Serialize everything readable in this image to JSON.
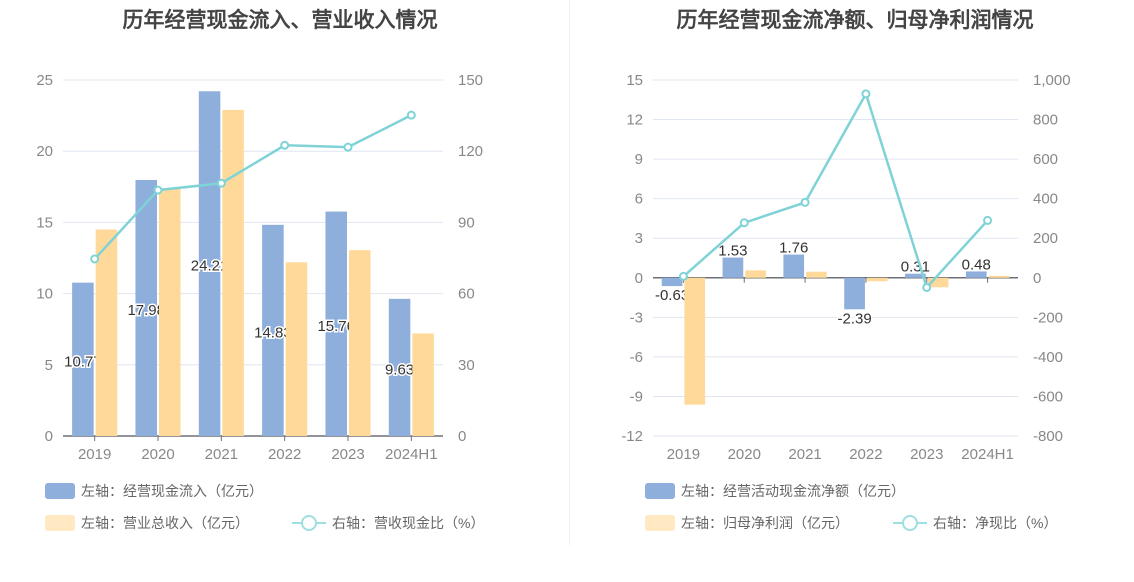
{
  "chart_data": [
    {
      "type": "bar+line",
      "title": "历年经营现金流入、营业收入情况",
      "categories": [
        "2019",
        "2020",
        "2021",
        "2022",
        "2023",
        "2024H1"
      ],
      "y_left": {
        "range": [
          0,
          25
        ],
        "ticks": [
          "0",
          "5",
          "10",
          "15",
          "20",
          "25"
        ]
      },
      "y_right": {
        "range": [
          0,
          150
        ],
        "ticks": [
          "0",
          "30",
          "60",
          "90",
          "120",
          "150"
        ]
      },
      "series": [
        {
          "name": "左轴：经营现金流入（亿元）",
          "type": "bar",
          "axis": "left",
          "color": "#8eaedb",
          "values": [
            10.77,
            17.98,
            24.21,
            14.83,
            15.76,
            9.63
          ],
          "labels": [
            "10.77",
            "17.98",
            "24.21",
            "14.83",
            "15.76",
            "9.63"
          ]
        },
        {
          "name": "左轴：营业总收入（亿元）",
          "type": "bar",
          "axis": "left",
          "color": "#ffd99a",
          "values": [
            14.5,
            17.4,
            22.9,
            12.2,
            13.05,
            7.2
          ]
        },
        {
          "name": "右轴：营收现金比（%）",
          "type": "line",
          "axis": "right",
          "color": "#7fd3d6",
          "values": [
            74.6,
            103.6,
            106.5,
            122.5,
            121.7,
            135.2
          ]
        }
      ],
      "grid": true,
      "legend": "bottom"
    },
    {
      "type": "bar+line",
      "title": "历年经营现金流净额、归母净利润情况",
      "categories": [
        "2019",
        "2020",
        "2021",
        "2022",
        "2023",
        "2024H1"
      ],
      "y_left": {
        "range": [
          -12,
          15
        ],
        "ticks": [
          "-12",
          "-9",
          "-6",
          "-3",
          "0",
          "3",
          "6",
          "9",
          "12",
          "15"
        ]
      },
      "y_right": {
        "range": [
          -800,
          1000
        ],
        "ticks": [
          "-800",
          "-600",
          "-400",
          "-200",
          "0",
          "200",
          "400",
          "600",
          "800",
          "1,000"
        ]
      },
      "series": [
        {
          "name": "左轴：经营活动现金流净额（亿元）",
          "type": "bar",
          "axis": "left",
          "color": "#8eaedb",
          "values": [
            -0.63,
            1.53,
            1.76,
            -2.39,
            0.31,
            0.48
          ],
          "labels": [
            "-0.63",
            "1.53",
            "1.76",
            "-2.39",
            "0.31",
            "0.48"
          ]
        },
        {
          "name": "左轴：归母净利润（亿元）",
          "type": "bar",
          "axis": "left",
          "color": "#ffd99a",
          "values": [
            -9.62,
            0.56,
            0.46,
            -0.26,
            -0.72,
            0.15
          ]
        },
        {
          "name": "右轴：净现比（%）",
          "type": "line",
          "axis": "right",
          "color": "#7fd3d6",
          "values": [
            7,
            278,
            381,
            930,
            -49,
            290
          ]
        }
      ],
      "grid": true,
      "legend": "bottom"
    }
  ]
}
